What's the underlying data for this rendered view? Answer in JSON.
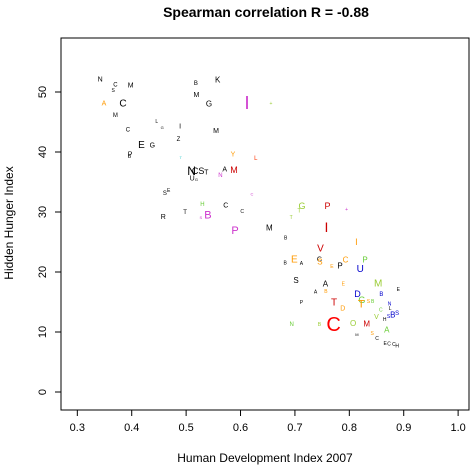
{
  "chart_data": {
    "type": "scatter",
    "title": "Spearman correlation R = -0.88",
    "xlabel": "Human Development Index 2007",
    "ylabel": "Hidden Hunger Index",
    "xlim": [
      0.27,
      1.02
    ],
    "ylim": [
      -3,
      59
    ],
    "xticks": [
      "0.3",
      "0.4",
      "0.5",
      "0.6",
      "0.7",
      "0.8",
      "0.9",
      "1.0"
    ],
    "yticks": [
      "0",
      "10",
      "20",
      "30",
      "40",
      "50"
    ],
    "grid": false,
    "points": [
      {
        "label": "N",
        "x": 0.342,
        "y": 52.0,
        "color": "#000000",
        "size": 7
      },
      {
        "label": "C",
        "x": 0.37,
        "y": 51.1,
        "color": "#000000",
        "size": 6
      },
      {
        "label": "M",
        "x": 0.398,
        "y": 51.0,
        "color": "#000000",
        "size": 7
      },
      {
        "label": "S",
        "x": 0.366,
        "y": 50.2,
        "color": "#000000",
        "size": 5
      },
      {
        "label": "B",
        "x": 0.518,
        "y": 51.3,
        "color": "#000000",
        "size": 6
      },
      {
        "label": "K",
        "x": 0.558,
        "y": 52.0,
        "color": "#000000",
        "size": 8
      },
      {
        "label": "M",
        "x": 0.519,
        "y": 49.4,
        "color": "#000000",
        "size": 7
      },
      {
        "label": "C",
        "x": 0.384,
        "y": 48.0,
        "color": "#000000",
        "size": 10
      },
      {
        "label": "A",
        "x": 0.349,
        "y": 48.0,
        "color": "#ff9900",
        "size": 7
      },
      {
        "label": "G",
        "x": 0.542,
        "y": 48.0,
        "color": "#000000",
        "size": 8
      },
      {
        "label": "I",
        "x": 0.612,
        "y": 48.2,
        "color": "#cc33cc",
        "size": 18
      },
      {
        "label": "+",
        "x": 0.656,
        "y": 48.0,
        "color": "#99cc33",
        "size": 5
      },
      {
        "label": "M",
        "x": 0.37,
        "y": 46.0,
        "color": "#000000",
        "size": 6
      },
      {
        "label": "L",
        "x": 0.446,
        "y": 45.0,
        "color": "#000000",
        "size": 5
      },
      {
        "label": "G",
        "x": 0.456,
        "y": 44.1,
        "color": "#000000",
        "size": 4
      },
      {
        "label": "I",
        "x": 0.489,
        "y": 44.2,
        "color": "#000000",
        "size": 7
      },
      {
        "label": "C",
        "x": 0.393,
        "y": 43.6,
        "color": "#000000",
        "size": 6
      },
      {
        "label": "M",
        "x": 0.555,
        "y": 43.4,
        "color": "#000000",
        "size": 7
      },
      {
        "label": "Z",
        "x": 0.486,
        "y": 42.0,
        "color": "#000000",
        "size": 6
      },
      {
        "label": "E",
        "x": 0.418,
        "y": 41.1,
        "color": "#000000",
        "size": 10
      },
      {
        "label": "G",
        "x": 0.438,
        "y": 41.0,
        "color": "#000000",
        "size": 7
      },
      {
        "label": "P",
        "x": 0.397,
        "y": 39.5,
        "color": "#000000",
        "size": 7
      },
      {
        "label": "B",
        "x": 0.396,
        "y": 39.2,
        "color": "#000000",
        "size": 5
      },
      {
        "label": "T",
        "x": 0.49,
        "y": 39.1,
        "color": "#33cccc",
        "size": 4
      },
      {
        "label": "Y",
        "x": 0.586,
        "y": 39.5,
        "color": "#ff9900",
        "size": 7
      },
      {
        "label": "L",
        "x": 0.628,
        "y": 38.8,
        "color": "#ff3300",
        "size": 6
      },
      {
        "label": "N",
        "x": 0.51,
        "y": 36.8,
        "color": "#000000",
        "size": 12
      },
      {
        "label": "CS",
        "x": 0.522,
        "y": 36.8,
        "color": "#000000",
        "size": 9
      },
      {
        "label": "A",
        "x": 0.571,
        "y": 37.0,
        "color": "#000000",
        "size": 7
      },
      {
        "label": "M",
        "x": 0.588,
        "y": 37.0,
        "color": "#cc0000",
        "size": 9
      },
      {
        "label": "T",
        "x": 0.537,
        "y": 36.5,
        "color": "#000000",
        "size": 7
      },
      {
        "label": "N",
        "x": 0.563,
        "y": 36.0,
        "color": "#cc33cc",
        "size": 6
      },
      {
        "label": "U",
        "x": 0.511,
        "y": 35.5,
        "color": "#000000",
        "size": 7
      },
      {
        "label": "G",
        "x": 0.519,
        "y": 35.4,
        "color": "#000000",
        "size": 4
      },
      {
        "label": "E",
        "x": 0.468,
        "y": 33.5,
        "color": "#000000",
        "size": 5
      },
      {
        "label": "S",
        "x": 0.461,
        "y": 33.0,
        "color": "#000000",
        "size": 6
      },
      {
        "label": "C",
        "x": 0.621,
        "y": 33.0,
        "color": "#cc33cc",
        "size": 4
      },
      {
        "label": "H",
        "x": 0.53,
        "y": 31.2,
        "color": "#66cc33",
        "size": 6
      },
      {
        "label": "C",
        "x": 0.573,
        "y": 31.0,
        "color": "#000000",
        "size": 7
      },
      {
        "label": "C",
        "x": 0.603,
        "y": 30.0,
        "color": "#000000",
        "size": 5
      },
      {
        "label": "B",
        "x": 0.54,
        "y": 29.4,
        "color": "#cc33cc",
        "size": 11
      },
      {
        "label": "T",
        "x": 0.498,
        "y": 29.8,
        "color": "#000000",
        "size": 6
      },
      {
        "label": "R",
        "x": 0.458,
        "y": 29.1,
        "color": "#000000",
        "size": 7
      },
      {
        "label": "S",
        "x": 0.527,
        "y": 29.1,
        "color": "#cc33cc",
        "size": 4
      },
      {
        "label": "P",
        "x": 0.59,
        "y": 26.8,
        "color": "#cc33cc",
        "size": 11
      },
      {
        "label": "M",
        "x": 0.653,
        "y": 27.3,
        "color": "#000000",
        "size": 8
      },
      {
        "label": "G",
        "x": 0.713,
        "y": 31.0,
        "color": "#99cc33",
        "size": 9
      },
      {
        "label": "T",
        "x": 0.708,
        "y": 30.1,
        "color": "#99cc33",
        "size": 6
      },
      {
        "label": "P",
        "x": 0.76,
        "y": 31.0,
        "color": "#cc0000",
        "size": 9
      },
      {
        "label": "T",
        "x": 0.693,
        "y": 29.0,
        "color": "#99cc33",
        "size": 5
      },
      {
        "label": "I",
        "x": 0.758,
        "y": 27.5,
        "color": "#cc0000",
        "size": 14
      },
      {
        "label": "+",
        "x": 0.795,
        "y": 30.3,
        "color": "#cc33cc",
        "size": 5
      },
      {
        "label": "B",
        "x": 0.683,
        "y": 25.6,
        "color": "#000000",
        "size": 5
      },
      {
        "label": "I",
        "x": 0.813,
        "y": 25.0,
        "color": "#ff9900",
        "size": 9
      },
      {
        "label": "V",
        "x": 0.747,
        "y": 23.8,
        "color": "#cc0000",
        "size": 10
      },
      {
        "label": "E",
        "x": 0.699,
        "y": 22.0,
        "color": "#ff9900",
        "size": 10
      },
      {
        "label": "C",
        "x": 0.745,
        "y": 22.0,
        "color": "#000000",
        "size": 7
      },
      {
        "label": "S",
        "x": 0.746,
        "y": 21.7,
        "color": "#ff9900",
        "size": 8
      },
      {
        "label": "C",
        "x": 0.793,
        "y": 22.0,
        "color": "#ff9900",
        "size": 8
      },
      {
        "label": "P",
        "x": 0.829,
        "y": 22.0,
        "color": "#66cc33",
        "size": 8
      },
      {
        "label": "P",
        "x": 0.783,
        "y": 21.0,
        "color": "#000000",
        "size": 8
      },
      {
        "label": "B",
        "x": 0.682,
        "y": 21.4,
        "color": "#000000",
        "size": 5
      },
      {
        "label": "A",
        "x": 0.712,
        "y": 21.3,
        "color": "#000000",
        "size": 5
      },
      {
        "label": "U",
        "x": 0.82,
        "y": 20.4,
        "color": "#0000cc",
        "size": 10
      },
      {
        "label": "E",
        "x": 0.768,
        "y": 20.8,
        "color": "#ff9900",
        "size": 5
      },
      {
        "label": "S",
        "x": 0.702,
        "y": 18.6,
        "color": "#000000",
        "size": 8
      },
      {
        "label": "A",
        "x": 0.756,
        "y": 18.0,
        "color": "#000000",
        "size": 8
      },
      {
        "label": "E",
        "x": 0.789,
        "y": 17.9,
        "color": "#ff9900",
        "size": 5
      },
      {
        "label": "M",
        "x": 0.853,
        "y": 18.0,
        "color": "#99cc33",
        "size": 10
      },
      {
        "label": "D",
        "x": 0.815,
        "y": 16.3,
        "color": "#0000cc",
        "size": 9
      },
      {
        "label": "G",
        "x": 0.823,
        "y": 15.3,
        "color": "#66cc33",
        "size": 9
      },
      {
        "label": "S",
        "x": 0.835,
        "y": 15.0,
        "color": "#ff9900",
        "size": 5
      },
      {
        "label": "B",
        "x": 0.843,
        "y": 15.0,
        "color": "#66cc33",
        "size": 5
      },
      {
        "label": "B",
        "x": 0.859,
        "y": 16.2,
        "color": "#0000cc",
        "size": 6
      },
      {
        "label": "E",
        "x": 0.89,
        "y": 17.0,
        "color": "#000000",
        "size": 5
      },
      {
        "label": "A",
        "x": 0.738,
        "y": 16.6,
        "color": "#000000",
        "size": 5
      },
      {
        "label": "B",
        "x": 0.757,
        "y": 16.7,
        "color": "#ff9900",
        "size": 5
      },
      {
        "label": "T",
        "x": 0.772,
        "y": 14.8,
        "color": "#cc0000",
        "size": 10
      },
      {
        "label": "T",
        "x": 0.822,
        "y": 14.6,
        "color": "#ff9900",
        "size": 11
      },
      {
        "label": "D",
        "x": 0.788,
        "y": 13.8,
        "color": "#ff9900",
        "size": 7
      },
      {
        "label": "P",
        "x": 0.712,
        "y": 14.8,
        "color": "#000000",
        "size": 5
      },
      {
        "label": "N",
        "x": 0.874,
        "y": 14.6,
        "color": "#0000cc",
        "size": 5
      },
      {
        "label": "L",
        "x": 0.875,
        "y": 13.8,
        "color": "#000000",
        "size": 5
      },
      {
        "label": "C",
        "x": 0.858,
        "y": 13.6,
        "color": "#66cc33",
        "size": 5
      },
      {
        "label": "V",
        "x": 0.85,
        "y": 12.4,
        "color": "#99cc33",
        "size": 7
      },
      {
        "label": "H",
        "x": 0.865,
        "y": 12.0,
        "color": "#000000",
        "size": 5
      },
      {
        "label": "S",
        "x": 0.872,
        "y": 12.5,
        "color": "#0000cc",
        "size": 5
      },
      {
        "label": "B",
        "x": 0.88,
        "y": 12.8,
        "color": "#0000cc",
        "size": 8
      },
      {
        "label": "S",
        "x": 0.888,
        "y": 13.0,
        "color": "#0000cc",
        "size": 6
      },
      {
        "label": "C",
        "x": 0.771,
        "y": 11.2,
        "color": "#ff0000",
        "size": 20
      },
      {
        "label": "O",
        "x": 0.807,
        "y": 11.4,
        "color": "#99cc33",
        "size": 8
      },
      {
        "label": "M",
        "x": 0.832,
        "y": 11.3,
        "color": "#cc0000",
        "size": 8
      },
      {
        "label": "N",
        "x": 0.694,
        "y": 11.2,
        "color": "#66cc33",
        "size": 6
      },
      {
        "label": "B",
        "x": 0.745,
        "y": 11.2,
        "color": "#99cc33",
        "size": 5
      },
      {
        "label": "A",
        "x": 0.869,
        "y": 10.3,
        "color": "#66cc33",
        "size": 8
      },
      {
        "label": "M",
        "x": 0.814,
        "y": 9.6,
        "color": "#000000",
        "size": 4
      },
      {
        "label": "S",
        "x": 0.842,
        "y": 9.7,
        "color": "#ff9900",
        "size": 5
      },
      {
        "label": "C",
        "x": 0.851,
        "y": 8.8,
        "color": "#000000",
        "size": 5
      },
      {
        "label": "E",
        "x": 0.866,
        "y": 8.0,
        "color": "#000000",
        "size": 5
      },
      {
        "label": "C",
        "x": 0.873,
        "y": 7.9,
        "color": "#000000",
        "size": 5
      },
      {
        "label": "C",
        "x": 0.882,
        "y": 7.8,
        "color": "#000000",
        "size": 5
      },
      {
        "label": "H",
        "x": 0.888,
        "y": 7.6,
        "color": "#000000",
        "size": 5
      }
    ]
  }
}
